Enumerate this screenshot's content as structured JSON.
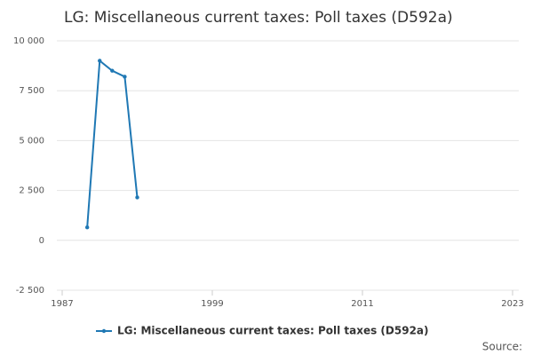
{
  "chart_data": {
    "type": "line",
    "title": "LG: Miscellaneous current taxes: Poll taxes (D592a)",
    "x": [
      1989,
      1990,
      1991,
      1992,
      1993
    ],
    "series": [
      {
        "name": "LG: Miscellaneous current taxes: Poll taxes (D592a)",
        "color": "#1f78b4",
        "values": [
          650,
          9000,
          8500,
          8200,
          2150
        ]
      }
    ],
    "xlim": [
      1987,
      2023
    ],
    "xticks": [
      1987,
      1999,
      2011,
      2023
    ],
    "ylim": [
      -2500,
      10000
    ],
    "yticks": [
      {
        "value": -2500,
        "label": "-2 500"
      },
      0,
      {
        "value": 2500,
        "label": "2 500"
      },
      {
        "value": 5000,
        "label": "5 000"
      },
      {
        "value": 7500,
        "label": "7 500"
      },
      {
        "value": 10000,
        "label": "10 000"
      }
    ],
    "grid": true,
    "legend": "bottom",
    "source": "Source:"
  }
}
